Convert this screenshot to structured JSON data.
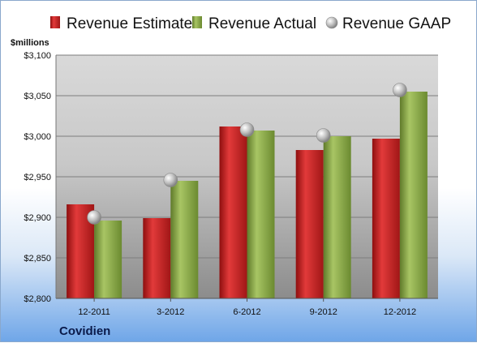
{
  "chart_data": {
    "type": "bar",
    "title": "",
    "company": "Covidien",
    "unit_label": "$millions",
    "categories": [
      "12-2011",
      "3-2012",
      "6-2012",
      "9-2012",
      "12-2012"
    ],
    "series": [
      {
        "name": "Revenue Estimate",
        "kind": "bar",
        "color": "#cc1f1f",
        "values": [
          2916,
          2899,
          3012,
          2983,
          2997
        ]
      },
      {
        "name": "Revenue Actual",
        "kind": "bar",
        "color": "#8fae4a",
        "values": [
          2896,
          2945,
          3007,
          3000,
          3055
        ]
      },
      {
        "name": "Revenue GAAP",
        "kind": "marker",
        "color": "#b8b8b8",
        "values": [
          2900,
          2946,
          3008,
          3001,
          3057
        ]
      }
    ],
    "yticks": [
      "$2,800",
      "$2,850",
      "$2,900",
      "$2,950",
      "$3,000",
      "$3,050",
      "$3,100"
    ],
    "ytick_values": [
      2800,
      2850,
      2900,
      2950,
      3000,
      3050,
      3100
    ],
    "ylim": [
      2800,
      3100
    ],
    "grid": true,
    "legend": "top"
  }
}
